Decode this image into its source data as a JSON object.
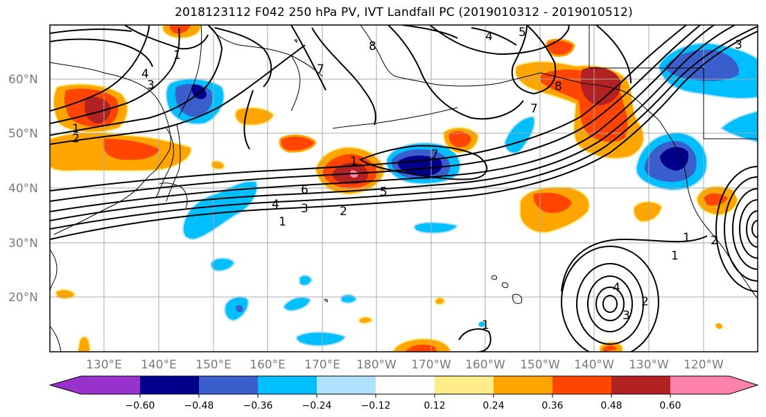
{
  "title": "2018123112 F042 250 hPa PV, IVT Landfall PC (2019010312 - 2019010512)",
  "lat_labels": [
    "60°N",
    "50°N",
    "40°N",
    "30°N",
    "20°N"
  ],
  "lon_labels": [
    "130°E",
    "140°E",
    "150°E",
    "160°E",
    "170°E",
    "180°W",
    "170°W",
    "160°W",
    "150°W",
    "140°W",
    "130°W",
    "120°W"
  ],
  "colorbar": {
    "ticks": [
      "−0.60",
      "−0.48",
      "−0.36",
      "−0.24",
      "−0.12",
      "0.12",
      "0.24",
      "0.36",
      "0.48",
      "0.60"
    ],
    "colors": [
      "#9932cc",
      "#00008b",
      "#3a5fcd",
      "#00bfff",
      "#b0e2ff",
      "#ffffff",
      "#ffec8b",
      "#ffa500",
      "#ff4500",
      "#b22222",
      "#ff82ab"
    ]
  },
  "contour_labels": [
    "1",
    "2",
    "3",
    "4",
    "5",
    "6",
    "7",
    "8",
    "4",
    "1",
    "2",
    "3",
    "4",
    "5",
    "7",
    "8",
    "7",
    "1",
    "2",
    "3",
    "4",
    "1",
    "1",
    "2",
    "3",
    "1",
    "1"
  ],
  "palette": {
    "dark_red": "#b22222",
    "red": "#ff4500",
    "orange": "#ffa500",
    "yellow": "#ffec8b",
    "pink": "#ff82ab",
    "navy": "#00008b",
    "blue": "#3a5fcd",
    "sky": "#00bfff",
    "light_blue": "#b0e2ff"
  }
}
